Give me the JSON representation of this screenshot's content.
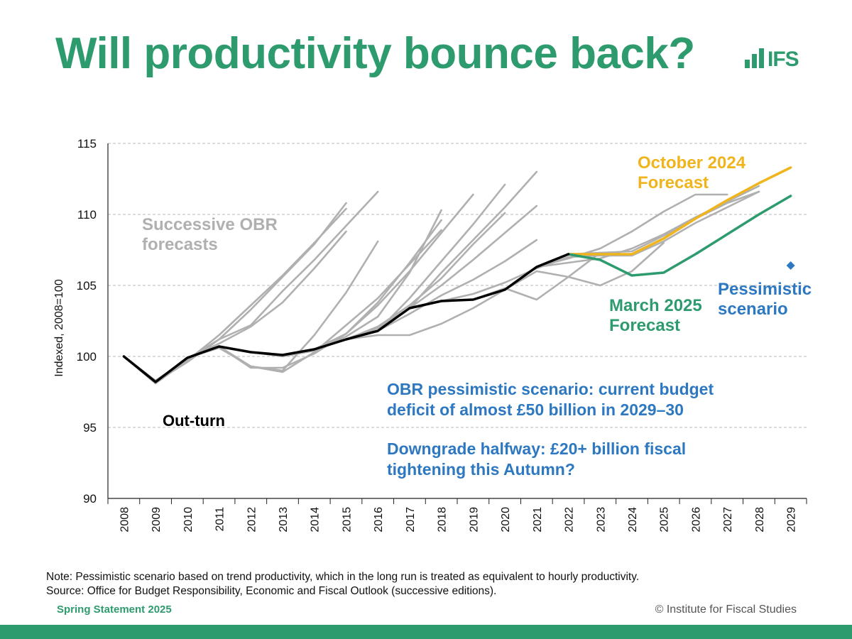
{
  "page": {
    "title": "Will productivity bounce back?",
    "logo_text": "IFS",
    "note_line1": "Note: Pessimistic scenario based on trend productivity, which in the long run is treated as equivalent to hourly productivity.",
    "note_line2": "Source: Office for Budget Responsibility, Economic and Fiscal Outlook (successive editions).",
    "footer_left": "Spring Statement 2025",
    "footer_right": "© Institute for Fiscal Studies"
  },
  "colors": {
    "brand": "#2e9b6e",
    "outturn": "#000000",
    "obr_forecasts": "#b0b0b0",
    "october_2024": "#f0b41c",
    "march_2025": "#2e9b6e",
    "pessimistic": "#2d78c0",
    "grid": "#c8c8c8"
  },
  "chart_data": {
    "type": "line",
    "title": "",
    "xlabel": "",
    "ylabel": "Indexed, 2008=100",
    "ylim": [
      90,
      115
    ],
    "yticks": [
      90,
      95,
      100,
      105,
      110,
      115
    ],
    "categories": [
      "2008",
      "2009",
      "2010",
      "2011",
      "2012",
      "2013",
      "2014",
      "2015",
      "2016",
      "2017",
      "2018",
      "2019",
      "2020",
      "2021",
      "2022",
      "2023",
      "2024",
      "2025",
      "2026",
      "2027",
      "2028",
      "2029"
    ],
    "grid": true,
    "series": [
      {
        "name": "Out-turn",
        "color": "#000000",
        "width": 3.5,
        "x": [
          2008,
          2009,
          2010,
          2011,
          2012,
          2013,
          2014,
          2015,
          2016,
          2017,
          2018,
          2019,
          2020,
          2021,
          2022
        ],
        "values": [
          100.0,
          98.2,
          99.9,
          100.7,
          100.3,
          100.1,
          100.5,
          101.2,
          101.8,
          103.4,
          103.9,
          104.0,
          104.7,
          106.3,
          107.2
        ]
      },
      {
        "name": "October 2024 Forecast",
        "color": "#f0b41c",
        "width": 3.5,
        "x": [
          2022,
          2023,
          2024,
          2025,
          2026,
          2027,
          2028,
          2029
        ],
        "values": [
          107.2,
          107.2,
          107.2,
          108.3,
          109.7,
          111.0,
          112.2,
          113.3
        ]
      },
      {
        "name": "March 2025 Forecast",
        "color": "#2e9b6e",
        "width": 3.5,
        "x": [
          2022,
          2023,
          2024,
          2025,
          2026,
          2027,
          2028,
          2029
        ],
        "values": [
          107.2,
          106.8,
          105.7,
          105.9,
          107.2,
          108.6,
          110.0,
          111.3
        ]
      },
      {
        "name": "Pessimistic scenario",
        "type": "point",
        "marker": "diamond",
        "color": "#2d78c0",
        "x": [
          2029
        ],
        "values": [
          106.4
        ]
      }
    ],
    "forecast_lines": [
      {
        "x": [
          2008,
          2009,
          2010,
          2011,
          2012,
          2013,
          2014,
          2015
        ],
        "values": [
          100.0,
          98.1,
          99.7,
          101.5,
          103.6,
          105.7,
          108.0,
          110.4
        ]
      },
      {
        "x": [
          2008,
          2009,
          2010,
          2011,
          2012,
          2013,
          2014,
          2015
        ],
        "values": [
          100.0,
          98.3,
          99.8,
          101.2,
          103.3,
          105.6,
          107.9,
          110.8
        ]
      },
      {
        "x": [
          2008,
          2009,
          2010,
          2011,
          2012,
          2013,
          2014,
          2015
        ],
        "values": [
          100.0,
          98.2,
          99.9,
          100.9,
          102.1,
          103.8,
          106.2,
          108.8
        ]
      },
      {
        "x": [
          2009,
          2010,
          2011,
          2012,
          2013,
          2014,
          2015,
          2016
        ],
        "values": [
          98.2,
          99.6,
          101.2,
          102.2,
          104.6,
          106.8,
          109.2,
          111.6
        ]
      },
      {
        "x": [
          2010,
          2011,
          2012,
          2013,
          2014,
          2015,
          2016
        ],
        "values": [
          99.9,
          100.6,
          99.3,
          99.0,
          101.5,
          104.5,
          108.1
        ]
      },
      {
        "x": [
          2011,
          2012,
          2013,
          2014,
          2015,
          2016,
          2017,
          2018
        ],
        "values": [
          100.7,
          99.3,
          98.9,
          100.3,
          102.2,
          104.1,
          106.5,
          108.9
        ]
      },
      {
        "x": [
          2011,
          2012,
          2013,
          2014,
          2015,
          2016,
          2017,
          2018
        ],
        "values": [
          100.7,
          99.2,
          99.2,
          100.2,
          101.6,
          103.8,
          106.6,
          109.6
        ]
      },
      {
        "x": [
          2012,
          2013,
          2014,
          2015,
          2016,
          2017,
          2018
        ],
        "values": [
          100.3,
          100.0,
          100.4,
          101.4,
          102.8,
          105.9,
          110.3
        ]
      },
      {
        "x": [
          2013,
          2014,
          2015,
          2016,
          2017,
          2018,
          2019
        ],
        "values": [
          100.1,
          100.5,
          101.6,
          103.6,
          106.0,
          108.7,
          111.4
        ]
      },
      {
        "x": [
          2014,
          2015,
          2016,
          2017,
          2018,
          2019,
          2020
        ],
        "values": [
          100.5,
          101.2,
          102.1,
          103.6,
          105.5,
          107.9,
          110.1
        ]
      },
      {
        "x": [
          2015,
          2016,
          2017,
          2018,
          2019,
          2020
        ],
        "values": [
          101.2,
          101.5,
          101.5,
          102.3,
          103.4,
          104.7
        ]
      },
      {
        "x": [
          2015,
          2016,
          2017,
          2018,
          2019,
          2020,
          2021
        ],
        "values": [
          101.2,
          102.0,
          103.4,
          105.0,
          106.8,
          108.7,
          110.6
        ]
      },
      {
        "x": [
          2016,
          2017,
          2018,
          2019,
          2020,
          2021
        ],
        "values": [
          101.8,
          103.0,
          104.3,
          105.4,
          106.7,
          108.2
        ]
      },
      {
        "x": [
          2016,
          2017,
          2018,
          2019,
          2020
        ],
        "values": [
          101.8,
          104.1,
          106.7,
          109.3,
          112.1
        ]
      },
      {
        "x": [
          2017,
          2018,
          2019,
          2020,
          2021
        ],
        "values": [
          103.4,
          105.9,
          108.2,
          110.5,
          113.0
        ]
      },
      {
        "x": [
          2018,
          2019,
          2020,
          2021,
          2022
        ],
        "values": [
          103.9,
          104.4,
          105.2,
          106.2,
          107.0
        ]
      },
      {
        "x": [
          2019,
          2020,
          2021,
          2022,
          2023
        ],
        "values": [
          104.0,
          104.8,
          104.0,
          105.6,
          107.3
        ]
      },
      {
        "x": [
          2020,
          2021,
          2022,
          2023,
          2024,
          2025
        ],
        "values": [
          104.7,
          106.0,
          105.6,
          105.0,
          106.0,
          108.0
        ]
      },
      {
        "x": [
          2021,
          2022,
          2023,
          2024,
          2025,
          2026,
          2027
        ],
        "values": [
          106.3,
          106.9,
          107.6,
          108.8,
          110.2,
          111.4,
          111.4
        ]
      },
      {
        "x": [
          2021,
          2022,
          2023,
          2024,
          2025,
          2026,
          2027,
          2028
        ],
        "values": [
          106.3,
          106.6,
          106.9,
          107.6,
          108.6,
          109.8,
          110.9,
          112.0
        ]
      },
      {
        "x": [
          2022,
          2023,
          2024,
          2025,
          2026,
          2027,
          2028
        ],
        "values": [
          107.2,
          107.3,
          107.4,
          108.5,
          109.7,
          110.8,
          111.6
        ]
      },
      {
        "x": [
          2022,
          2023,
          2024,
          2025,
          2026,
          2027,
          2028
        ],
        "values": [
          107.0,
          107.1,
          107.1,
          108.1,
          109.4,
          110.5,
          111.6
        ]
      }
    ],
    "annotations": {
      "successive": [
        "Successive OBR",
        "forecasts"
      ],
      "outturn": "Out-turn",
      "october": [
        "October 2024",
        "Forecast"
      ],
      "march": [
        "March 2025",
        "Forecast"
      ],
      "pessimistic": [
        "Pessimistic",
        "scenario"
      ],
      "callout1": [
        "OBR pessimistic scenario: current budget",
        "deficit of almost £50 billion in 2029–30"
      ],
      "callout2": [
        "Downgrade halfway: £20+ billion fiscal",
        "tightening this Autumn?"
      ]
    }
  }
}
